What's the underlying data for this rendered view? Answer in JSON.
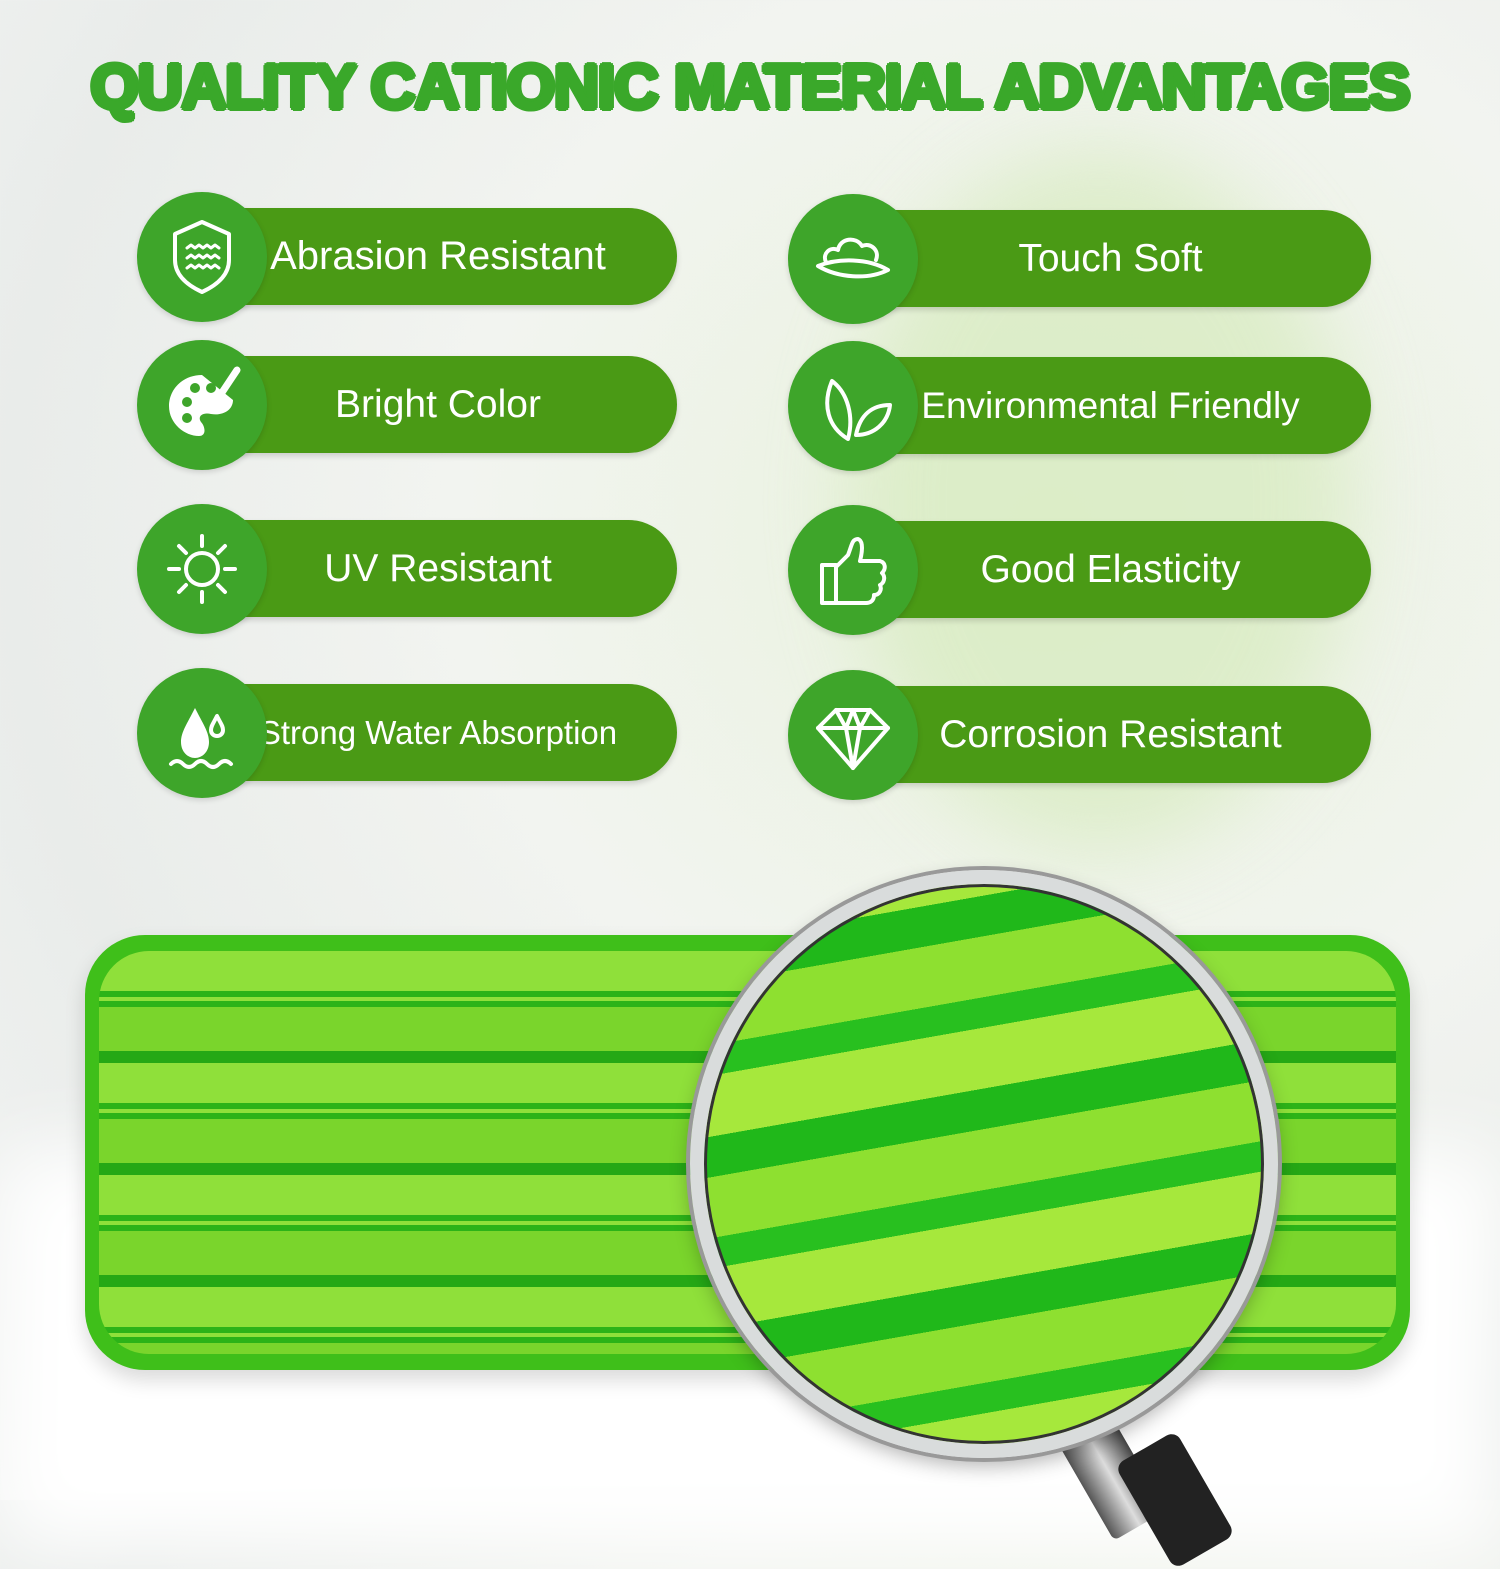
{
  "title": "QUALITY CATIONIC MATERIAL ADVANTAGES",
  "colors": {
    "circle": "#3ea52a",
    "pill": "#4a9a15",
    "title": "#3aa82a"
  },
  "features_left": [
    {
      "label": "Abrasion Resistant",
      "icon": "shield-waves-icon"
    },
    {
      "label": "Bright Color",
      "icon": "palette-brush-icon"
    },
    {
      "label": "UV Resistant",
      "icon": "sun-icon"
    },
    {
      "label": "Strong Water Absorption",
      "icon": "water-drop-icon"
    }
  ],
  "features_right": [
    {
      "label": "Touch Soft",
      "icon": "cloud-icon"
    },
    {
      "label": "Environmental Friendly",
      "icon": "leaf-icon"
    },
    {
      "label": "Good Elasticity",
      "icon": "thumbs-up-icon"
    },
    {
      "label": "Corrosion Resistant",
      "icon": "diamond-icon"
    }
  ]
}
